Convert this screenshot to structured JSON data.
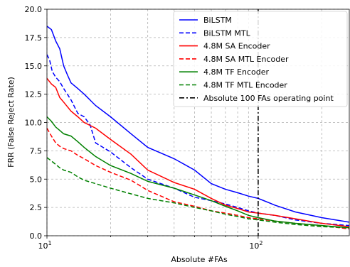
{
  "chart_data": {
    "type": "line",
    "xlabel": "Absolute #FAs",
    "ylabel": "FRR (False Reject Rate)",
    "x_scale": "log",
    "xlim": [
      10,
      270
    ],
    "ylim": [
      0,
      20
    ],
    "y_ticks": [
      "0.0",
      "2.5",
      "5.0",
      "7.5",
      "10.0",
      "12.5",
      "15.0",
      "17.5",
      "20.0"
    ],
    "x_tick_labels": [
      {
        "value": 10,
        "base": "10",
        "exp": "1"
      },
      {
        "value": 100,
        "base": "10",
        "exp": "2"
      }
    ],
    "grid": true,
    "legend_position": "top-right",
    "series": [
      {
        "name": "BiLSTM",
        "color": "#0000ff",
        "dash": "solid",
        "x": [
          10,
          10.5,
          11,
          11.5,
          12,
          12.5,
          13,
          14,
          15,
          17,
          20,
          25,
          30,
          40,
          50,
          60,
          70,
          80,
          90,
          100,
          120,
          150,
          200,
          270
        ],
        "y": [
          18.5,
          18.2,
          17.2,
          16.5,
          15.0,
          14.2,
          13.5,
          13.0,
          12.5,
          11.5,
          10.5,
          9.0,
          7.8,
          6.8,
          5.8,
          4.6,
          4.1,
          3.8,
          3.5,
          3.3,
          2.7,
          2.1,
          1.6,
          1.2
        ]
      },
      {
        "name": "BiLSTM MTL",
        "color": "#0000ff",
        "dash": "dashed",
        "x": [
          10,
          10.3,
          10.6,
          11,
          11.5,
          12,
          13,
          14,
          15,
          16,
          17,
          20,
          25,
          30,
          40,
          50,
          60,
          70,
          80,
          90,
          100,
          120,
          150,
          200,
          270
        ],
        "y": [
          16.0,
          15.5,
          14.5,
          14.0,
          13.6,
          13.0,
          12.0,
          10.8,
          10.5,
          9.8,
          8.2,
          7.4,
          6.0,
          5.0,
          4.2,
          3.4,
          3.1,
          2.8,
          2.5,
          2.2,
          2.0,
          1.8,
          1.4,
          1.1,
          0.9
        ]
      },
      {
        "name": "4.8M SA Encoder",
        "color": "#ff0000",
        "dash": "solid",
        "x": [
          10,
          10.5,
          11,
          11.5,
          12,
          13,
          14,
          15,
          17,
          20,
          25,
          30,
          40,
          50,
          60,
          70,
          80,
          90,
          100,
          120,
          150,
          200,
          270
        ],
        "y": [
          13.9,
          13.4,
          13.1,
          12.2,
          11.8,
          11.0,
          10.5,
          10.0,
          9.5,
          8.5,
          7.2,
          5.8,
          4.7,
          4.1,
          3.3,
          2.7,
          2.4,
          2.1,
          2.0,
          1.8,
          1.5,
          1.1,
          0.8
        ]
      },
      {
        "name": "4.8M SA MTL Encoder",
        "color": "#ff0000",
        "dash": "dashed",
        "x": [
          10,
          10.5,
          11,
          11.5,
          12,
          13,
          14,
          15,
          17,
          20,
          25,
          30,
          40,
          50,
          60,
          70,
          80,
          90,
          100,
          120,
          150,
          200,
          270
        ],
        "y": [
          9.5,
          8.8,
          8.2,
          7.9,
          7.7,
          7.5,
          7.1,
          6.8,
          6.2,
          5.6,
          4.9,
          4.0,
          3.0,
          2.6,
          2.2,
          2.0,
          1.8,
          1.6,
          1.5,
          1.3,
          1.1,
          0.9,
          0.6
        ]
      },
      {
        "name": "4.8M TF Encoder",
        "color": "#008000",
        "dash": "solid",
        "x": [
          10,
          10.5,
          11,
          11.5,
          12,
          13,
          14,
          15,
          17,
          20,
          25,
          30,
          40,
          50,
          60,
          70,
          80,
          90,
          100,
          120,
          150,
          200,
          270
        ],
        "y": [
          10.5,
          10.1,
          9.6,
          9.3,
          9.0,
          8.8,
          8.3,
          7.8,
          7.0,
          6.2,
          5.5,
          4.8,
          4.2,
          3.6,
          3.1,
          2.6,
          2.2,
          1.8,
          1.6,
          1.3,
          1.1,
          0.9,
          0.7
        ]
      },
      {
        "name": "4.8M TF MTL Encoder",
        "color": "#008000",
        "dash": "dashed",
        "x": [
          10,
          10.5,
          11,
          11.5,
          12,
          13,
          14,
          15,
          17,
          20,
          25,
          30,
          40,
          50,
          60,
          70,
          80,
          90,
          100,
          120,
          150,
          200,
          270
        ],
        "y": [
          6.9,
          6.6,
          6.3,
          6.0,
          5.8,
          5.6,
          5.2,
          4.9,
          4.6,
          4.2,
          3.7,
          3.3,
          2.9,
          2.5,
          2.2,
          1.9,
          1.7,
          1.5,
          1.4,
          1.2,
          1.0,
          0.8,
          0.7
        ]
      }
    ],
    "reference_line": {
      "name": "Absolute 100 FAs operating point",
      "x": 100,
      "color": "#000000",
      "dash": "dashdot"
    }
  }
}
